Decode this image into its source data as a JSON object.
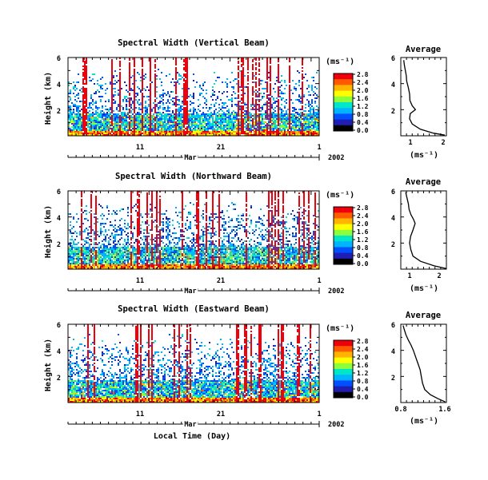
{
  "figure": {
    "xlabel": "Local Time (Day)",
    "month_label": "Mar",
    "year_label": "2002"
  },
  "colorbar": {
    "unit": "(ms⁻¹)",
    "ticks": [
      "2.8",
      "2.4",
      "2.0",
      "1.6",
      "1.2",
      "0.8",
      "0.4",
      "0.0"
    ],
    "colors": [
      "#f0000a",
      "#ff5a00",
      "#ffb400",
      "#ffff00",
      "#8cff3c",
      "#00e6c8",
      "#00b4ff",
      "#0050ff",
      "#1e1eb4",
      "#000000"
    ]
  },
  "chart_data": [
    {
      "type": "heatmap",
      "title": "Spectral Width (Vertical Beam)",
      "ylabel": "Height (km)",
      "x_ticks": [
        "11",
        "21",
        "1"
      ],
      "y_ticks": [
        "6",
        "4",
        "2"
      ],
      "ylim": [
        0,
        6
      ],
      "xlim_days": [
        "Mar 1",
        "Apr 1"
      ],
      "color_range": [
        0.0,
        2.8
      ],
      "color_unit": "(ms⁻¹)"
    },
    {
      "type": "line",
      "title": "Average",
      "xlabel": "(ms⁻¹)",
      "x_ticks": [
        "1",
        "2"
      ],
      "y_ticks": [
        "6",
        "4",
        "2"
      ],
      "xlim": [
        0.7,
        2.1
      ],
      "ylim": [
        0,
        6
      ],
      "points": [
        [
          2.05,
          0.05
        ],
        [
          1.7,
          0.2
        ],
        [
          1.3,
          0.5
        ],
        [
          1.05,
          0.9
        ],
        [
          0.97,
          1.3
        ],
        [
          0.99,
          1.7
        ],
        [
          1.15,
          2.0
        ],
        [
          1.05,
          2.3
        ],
        [
          0.98,
          2.7
        ],
        [
          0.97,
          3.2
        ],
        [
          0.93,
          3.7
        ],
        [
          0.88,
          4.2
        ],
        [
          0.87,
          4.6
        ],
        [
          0.84,
          5.0
        ],
        [
          0.81,
          5.4
        ],
        [
          0.79,
          5.8
        ]
      ]
    },
    {
      "type": "heatmap",
      "title": "Spectral Width (Northward Beam)",
      "ylabel": "Height (km)",
      "x_ticks": [
        "11",
        "21",
        "1"
      ],
      "y_ticks": [
        "6",
        "4",
        "2"
      ],
      "ylim": [
        0,
        6
      ],
      "xlim_days": [
        "Mar 1",
        "Apr 1"
      ],
      "color_range": [
        0.0,
        2.8
      ],
      "color_unit": "(ms⁻¹)"
    },
    {
      "type": "line",
      "title": "Average",
      "xlabel": "(ms⁻¹)",
      "x_ticks": [
        "1",
        "2"
      ],
      "y_ticks": [
        "6",
        "4",
        "2"
      ],
      "xlim": [
        0.7,
        2.2
      ],
      "ylim": [
        0,
        6
      ],
      "points": [
        [
          2.2,
          0.05
        ],
        [
          1.8,
          0.25
        ],
        [
          1.35,
          0.6
        ],
        [
          1.1,
          1.0
        ],
        [
          1.03,
          1.5
        ],
        [
          0.99,
          2.0
        ],
        [
          1.02,
          2.5
        ],
        [
          1.1,
          3.0
        ],
        [
          1.17,
          3.5
        ],
        [
          1.12,
          3.8
        ],
        [
          1.03,
          4.2
        ],
        [
          0.97,
          4.6
        ],
        [
          0.95,
          5.0
        ],
        [
          0.9,
          5.5
        ],
        [
          0.86,
          5.9
        ]
      ]
    },
    {
      "type": "heatmap",
      "title": "Spectral Width (Eastward Beam)",
      "ylabel": "Height (km)",
      "x_ticks": [
        "11",
        "21",
        "1"
      ],
      "y_ticks": [
        "6",
        "4",
        "2"
      ],
      "ylim": [
        0,
        6
      ],
      "xlim_days": [
        "Mar 1",
        "Apr 1"
      ],
      "color_range": [
        0.0,
        2.8
      ],
      "color_unit": "(ms⁻¹)"
    },
    {
      "type": "line",
      "title": "Average",
      "xlabel": "(ms⁻¹)",
      "x_ticks": [
        "0.8",
        "1.6"
      ],
      "y_ticks": [
        "6",
        "4",
        "2"
      ],
      "xlim": [
        0.8,
        1.6
      ],
      "ylim": [
        0,
        6
      ],
      "points": [
        [
          1.58,
          0.05
        ],
        [
          1.45,
          0.3
        ],
        [
          1.32,
          0.6
        ],
        [
          1.22,
          1.0
        ],
        [
          1.18,
          1.5
        ],
        [
          1.16,
          2.0
        ],
        [
          1.14,
          2.5
        ],
        [
          1.1,
          3.0
        ],
        [
          1.06,
          3.5
        ],
        [
          1.02,
          4.0
        ],
        [
          0.98,
          4.4
        ],
        [
          0.93,
          4.8
        ],
        [
          0.89,
          5.2
        ],
        [
          0.86,
          5.6
        ],
        [
          0.84,
          5.9
        ]
      ]
    }
  ]
}
